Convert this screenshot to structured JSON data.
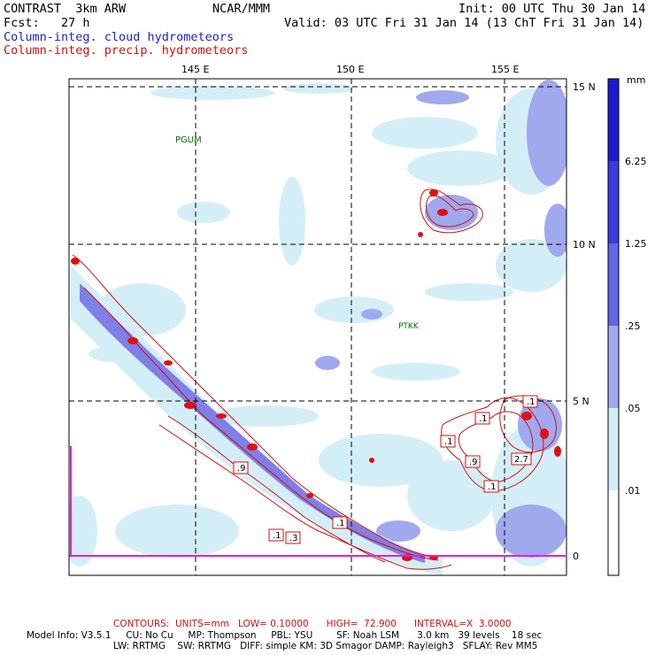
{
  "header": {
    "model": "CONTRAST  3km ARW",
    "org": "NCAR/MMM",
    "init": "Init: 00 UTC Thu 30 Jan 14",
    "fcst": "Fcst:   27 h",
    "valid": "Valid: 03 UTC Fri 31 Jan 14 (13 ChT Fri 31 Jan 14)",
    "field1": "Column-integ. cloud hydrometeors",
    "field2": "Column-integ. precip. hydrometeors"
  },
  "axes": {
    "lon_labels": [
      "145 E",
      "150 E",
      "155 E"
    ],
    "lat_labels": [
      "15 N",
      "10 N",
      "5 N",
      "0"
    ]
  },
  "stations": [
    {
      "name": "PGUM"
    },
    {
      "name": "PTKK"
    }
  ],
  "contour_labels": [
    ".9",
    ".1",
    ".3",
    ".1",
    ".1",
    ".1",
    ".1",
    ".9",
    "2.7",
    ".1"
  ],
  "colorbar": {
    "unit": "mm",
    "levels": [
      "6.25",
      "1.25",
      ".25",
      ".05",
      ".01"
    ],
    "colors": [
      "#1a1ad0",
      "#3c3ce0",
      "#6464e6",
      "#a0a8ee",
      "#d4eef8",
      "#ffffff"
    ]
  },
  "footer": {
    "contours": "CONTOURS:  UNITS=mm   LOW= 0.10000      HIGH=  72.900      INTERVAL=X  3.0000",
    "info1": "Model Info: V3.5.1     CU: No Cu     MP: Thompson     PBL: YSU        SF: Noah LSM      3.0 km   39 levels    18 sec",
    "info2": "LW: RRTMG    SW: RRTMG   DIFF: simple KM: 3D Smagor DAMP: Rayleigh3   SFLAY: Rev MM5"
  },
  "colors": {
    "cloud": "#2020d0",
    "precip": "#d01010",
    "boundary": "#e020e0"
  }
}
